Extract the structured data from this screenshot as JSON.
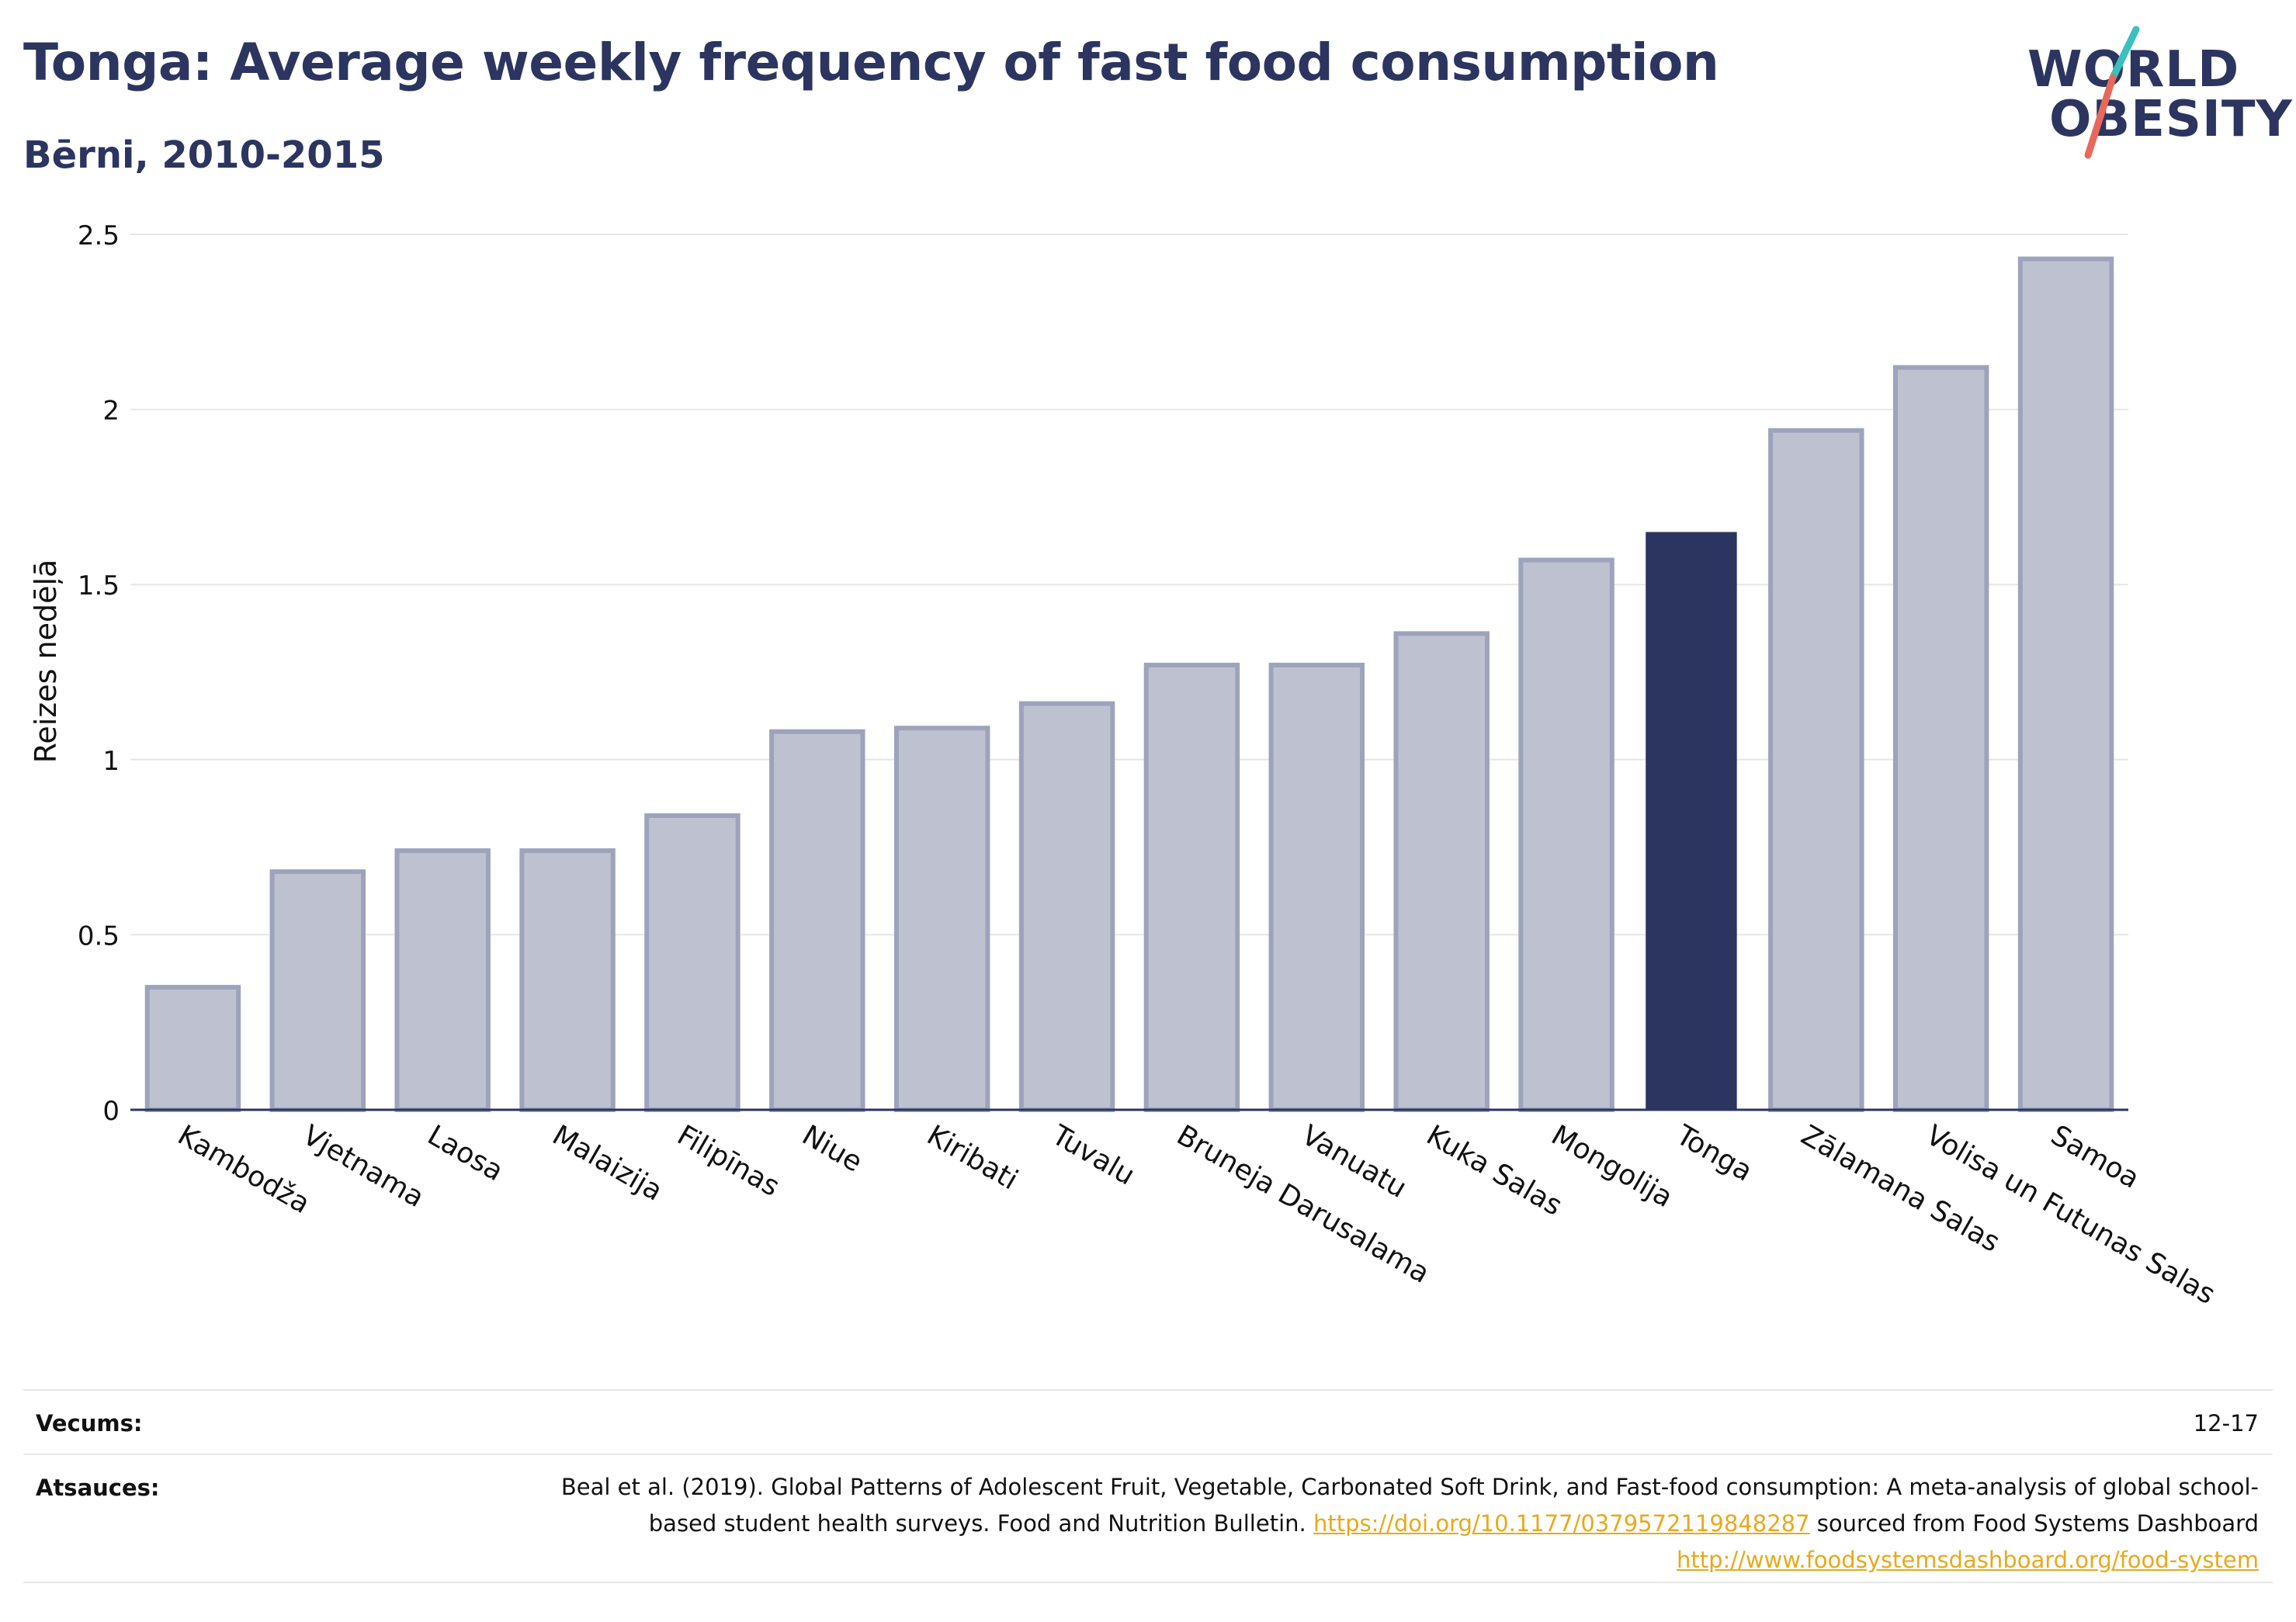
{
  "header": {
    "title": "Tonga: Average weekly frequency of fast food consumption",
    "subtitle": "Bērni, 2010-2015"
  },
  "logo": {
    "line1": "WORLD",
    "line2": "OBESITY",
    "colors": {
      "text": "#2b3560",
      "slash_teal": "#3bbfbf",
      "slash_coral": "#e8695c"
    }
  },
  "chart_data": {
    "type": "bar",
    "title": "Tonga: Average weekly frequency of fast food consumption",
    "subtitle": "Bērni, 2010-2015",
    "xlabel": "",
    "ylabel": "Reizes nedēļā",
    "ylim": [
      0,
      2.5
    ],
    "yticks": [
      0,
      0.5,
      1,
      1.5,
      2,
      2.5
    ],
    "ytick_labels": [
      "0",
      "0.5",
      "1",
      "1.5",
      "2",
      "2.5"
    ],
    "grid": true,
    "categories": [
      "Kambodža",
      "Vjetnama",
      "Laosa",
      "Malaizija",
      "Filipīnas",
      "Niue",
      "Kiribati",
      "Tuvalu",
      "Bruneja Darusalama",
      "Vanuatu",
      "Kuka Salas",
      "Mongolija",
      "Tonga",
      "Zālamana Salas",
      "Volisa un Futunas Salas",
      "Samoa"
    ],
    "values": [
      0.35,
      0.68,
      0.74,
      0.74,
      0.84,
      1.08,
      1.09,
      1.16,
      1.27,
      1.27,
      1.36,
      1.57,
      1.65,
      1.94,
      2.12,
      2.43
    ],
    "highlight": "Tonga",
    "colors": {
      "bar": "#bec2d0",
      "bar_edge": "#9da3bb",
      "highlight": "#2b3560",
      "grid": "#e6e6e6",
      "axis": "#2b3560"
    }
  },
  "footer": {
    "age_label": "Vecums:",
    "age_value": "12-17",
    "sources_label": "Atsauces:",
    "sources_text_1": "Beal et al. (2019). Global Patterns of Adolescent Fruit, Vegetable, Carbonated Soft Drink, and Fast-food consumption: A meta-analysis of global school-based student health surveys. Food and Nutrition Bulletin. ",
    "sources_link_1": "https://doi.org/10.1177/0379572119848287",
    "sources_text_2": " sourced from Food Systems Dashboard ",
    "sources_link_2": "http://www.foodsystemsdashboard.org/food-system",
    "link_color": "#e8a91c"
  }
}
